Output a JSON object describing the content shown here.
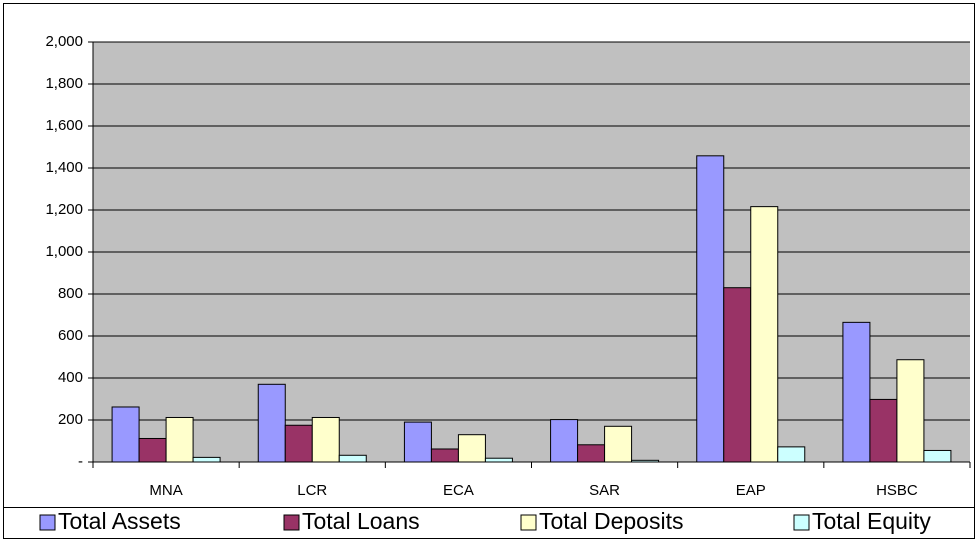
{
  "chart_data": {
    "type": "bar",
    "categories": [
      "MNA",
      "LCR",
      "ECA",
      "SAR",
      "EAP",
      "HSBC"
    ],
    "series": [
      {
        "name": "Total Assets",
        "color": "#9999ff",
        "values": [
          262,
          370,
          190,
          202,
          1458,
          665
        ]
      },
      {
        "name": "Total Loans",
        "color": "#993366",
        "values": [
          112,
          175,
          62,
          82,
          830,
          298
        ]
      },
      {
        "name": "Total Deposits",
        "color": "#ffffcc",
        "values": [
          212,
          212,
          130,
          170,
          1216,
          487
        ]
      },
      {
        "name": "Total Equity",
        "color": "#ccffff",
        "values": [
          22,
          32,
          18,
          8,
          72,
          55
        ]
      }
    ],
    "ylim": [
      0,
      2000
    ],
    "yticks": [
      {
        "value": 0,
        "label": "-"
      },
      200,
      400,
      600,
      800,
      {
        "value": 1000,
        "label": "1,000"
      },
      {
        "value": 1200,
        "label": "1,200"
      },
      {
        "value": 1400,
        "label": "1,400"
      },
      {
        "value": 1600,
        "label": "1,600"
      },
      {
        "value": 1800,
        "label": "1,800"
      },
      {
        "value": 2000,
        "label": "2,000"
      }
    ],
    "grid": true,
    "legend": "bottom"
  }
}
